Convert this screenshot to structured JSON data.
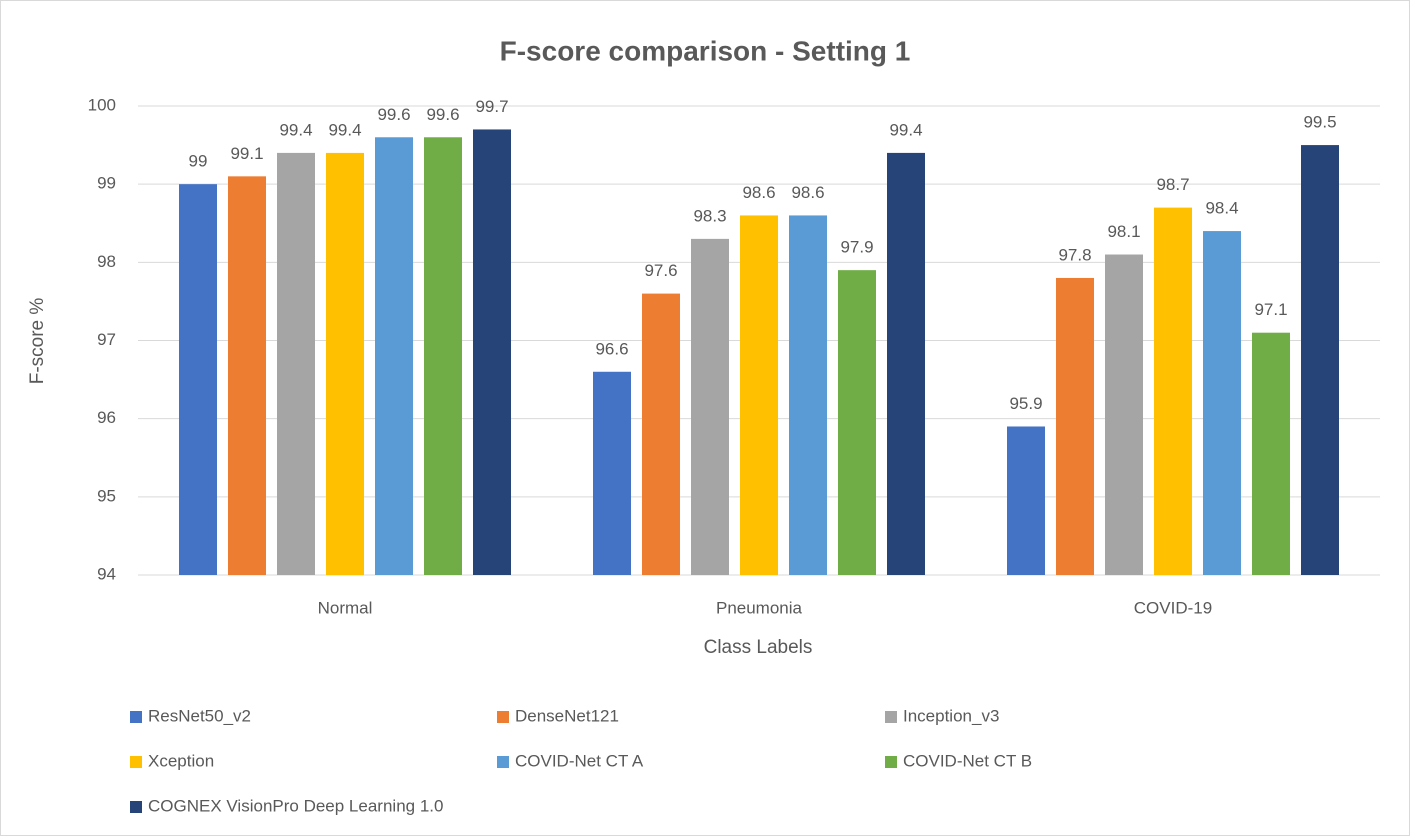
{
  "chart_data": {
    "type": "bar",
    "title": "F-score comparison - Setting 1",
    "x_label": "Class Labels",
    "y_label": "F-score %",
    "categories": [
      "Normal",
      "Pneumonia",
      "COVID-19"
    ],
    "series": [
      {
        "name": "ResNet50_v2",
        "color": "#4472c4",
        "values": [
          99,
          96.6,
          95.9
        ]
      },
      {
        "name": "DenseNet121",
        "color": "#ed7d31",
        "values": [
          99.1,
          97.6,
          97.8
        ]
      },
      {
        "name": "Inception_v3",
        "color": "#a5a5a5",
        "values": [
          99.4,
          98.3,
          98.1
        ]
      },
      {
        "name": "Xception",
        "color": "#ffc000",
        "values": [
          99.4,
          98.6,
          98.7
        ]
      },
      {
        "name": "COVID-Net CT A",
        "color": "#5b9bd5",
        "values": [
          99.6,
          98.6,
          98.4
        ]
      },
      {
        "name": "COVID-Net CT B",
        "color": "#70ad47",
        "values": [
          99.6,
          97.9,
          97.1
        ]
      },
      {
        "name": "COGNEX VisionPro Deep Learning 1.0",
        "color": "#264478",
        "values": [
          99.7,
          99.4,
          99.5
        ]
      }
    ],
    "ylim": [
      94,
      100
    ],
    "yticks": [
      94,
      95,
      96,
      97,
      98,
      99,
      100
    ],
    "grid": true,
    "legend": "bottom"
  }
}
